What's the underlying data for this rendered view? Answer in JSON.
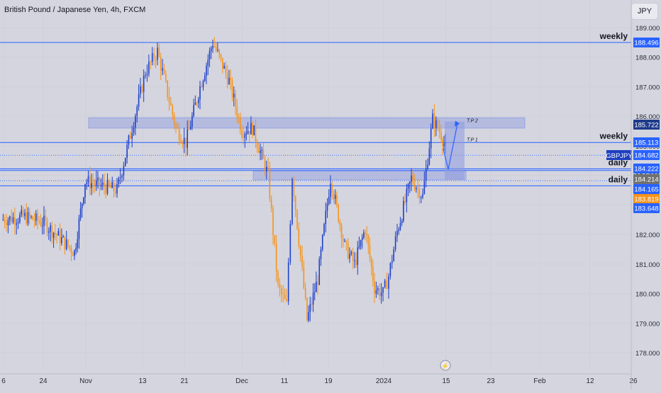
{
  "header": {
    "title": "British Pound / Japanese Yen, 4h, FXCM",
    "currency_button": "JPY"
  },
  "chart_data": {
    "type": "candlestick",
    "symbol": "GBPJPY",
    "ylim": [
      177.6,
      189.4
    ],
    "y_ticks": [
      "178.000",
      "179.000",
      "180.000",
      "181.000",
      "182.000",
      "183.000",
      "184.000",
      "185.000",
      "186.000",
      "187.000",
      "188.000",
      "189.000"
    ],
    "x_ticks": [
      "6",
      "24",
      "Nov",
      "13",
      "21",
      "Dec",
      "11",
      "19",
      "2024",
      "15",
      "23",
      "Feb",
      "12",
      "26"
    ],
    "horizontal_lines": [
      {
        "label": "weekly",
        "value": 188.496
      },
      {
        "label": "weekly",
        "value": 185.113
      },
      {
        "label": "daily",
        "value": 184.222
      },
      {
        "label": "daily",
        "value": 183.648
      }
    ],
    "zones": [
      {
        "from": 185.6,
        "to": 185.95
      },
      {
        "from": 183.85,
        "to": 184.15
      }
    ],
    "projection": {
      "labels": [
        "T.P 2",
        "T.P 1"
      ]
    },
    "price_labels": [
      {
        "text": "185.722",
        "color": "#1e3a8a"
      },
      {
        "text": "185.113",
        "color": "#2962ff"
      },
      {
        "text": "184.682",
        "color": "#2962ff"
      },
      {
        "text": "184.222",
        "color": "#2962ff"
      },
      {
        "text": "184.214",
        "color": "#707070"
      },
      {
        "text": "184.165",
        "color": "#2962ff"
      },
      {
        "text": "183.819",
        "color": "#f7931a"
      },
      {
        "text": "183.648",
        "color": "#2962ff"
      },
      {
        "text": "188.496",
        "color": "#2962ff"
      }
    ],
    "symbol_tag": "GBPJPY",
    "colors": {
      "up": "#1e40c8",
      "down": "#f7931a",
      "line": "#2962ff",
      "zone": "#8d9be0"
    },
    "path": [
      [
        "6",
        182.5
      ],
      [
        "12",
        182.6
      ],
      [
        "24",
        182.4
      ],
      [
        "27",
        181.4
      ],
      [
        "Nov",
        183.8
      ],
      [
        "7",
        183.5
      ],
      [
        "13",
        187.5
      ],
      [
        "16",
        188.2
      ],
      [
        "19",
        185.6
      ],
      [
        "21",
        185.1
      ],
      [
        "23",
        187.0
      ],
      [
        "25",
        188.5
      ],
      [
        "28",
        187.2
      ],
      [
        "Dec",
        185.5
      ],
      [
        "5",
        185.6
      ],
      [
        "8",
        184.0
      ],
      [
        "9",
        180.2
      ],
      [
        "11",
        179.6
      ],
      [
        "13",
        184.0
      ],
      [
        "15",
        179.1
      ],
      [
        "18",
        180.5
      ],
      [
        "19",
        183.9
      ],
      [
        "21",
        181.6
      ],
      [
        "24",
        181.0
      ],
      [
        "26",
        182.2
      ],
      [
        "28",
        180.2
      ],
      [
        "31",
        180.0
      ],
      [
        "2024",
        180.6
      ],
      [
        "3",
        182.1
      ],
      [
        "6",
        183.9
      ],
      [
        "9",
        183.3
      ],
      [
        "11",
        185.9
      ],
      [
        "13",
        185.4
      ],
      [
        "14",
        184.9
      ]
    ]
  }
}
